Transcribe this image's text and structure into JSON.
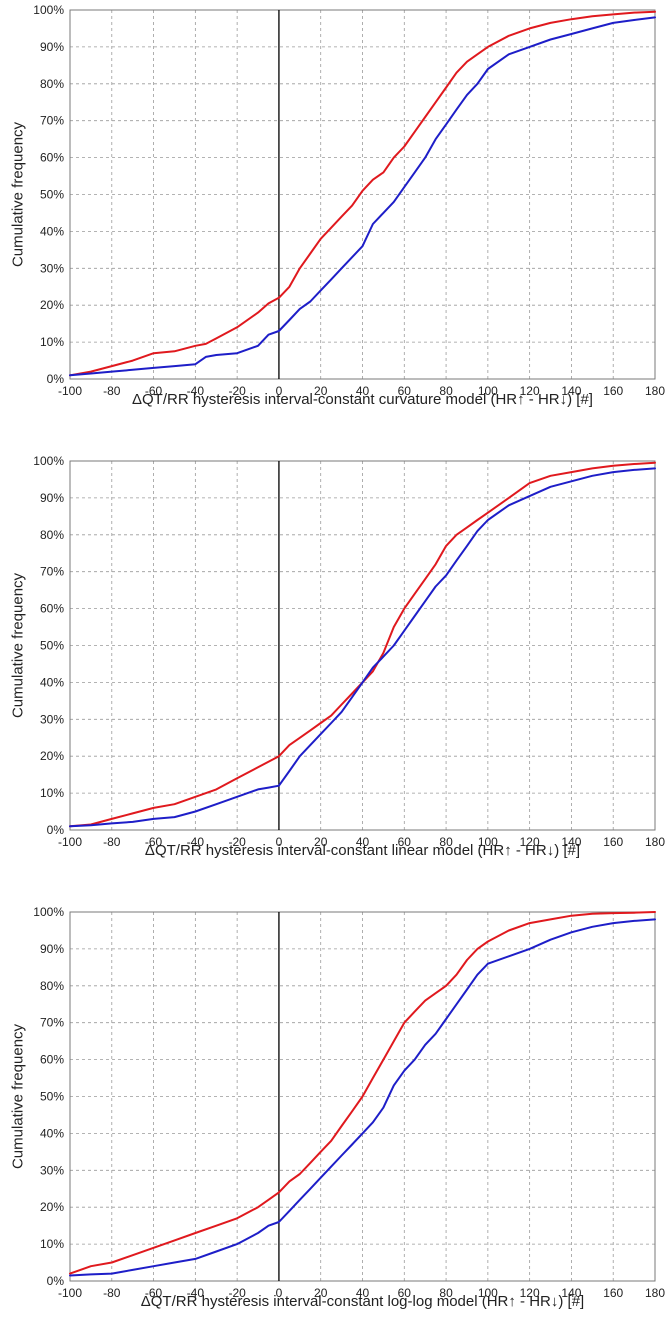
{
  "chart_data": [
    {
      "type": "line",
      "xlabel": "ΔQT/RR hysteresis interval-constant curvature model (HR↑ - HR↓) [#]",
      "ylabel": "Cumulative frequency",
      "xlim": [
        -100,
        180
      ],
      "ylim": [
        0,
        100
      ],
      "x_ticks": [
        -100,
        -80,
        -60,
        -40,
        -20,
        0,
        20,
        40,
        60,
        80,
        100,
        120,
        140,
        160,
        180
      ],
      "y_ticks": [
        0,
        10,
        20,
        30,
        40,
        50,
        60,
        70,
        80,
        90,
        100
      ],
      "y_tick_format": "%",
      "grid": true,
      "reference_line_x": 0,
      "series": [
        {
          "color": "#e0191e",
          "x": [
            -100,
            -90,
            -80,
            -70,
            -60,
            -50,
            -40,
            -35,
            -30,
            -20,
            -10,
            -5,
            0,
            5,
            10,
            15,
            20,
            25,
            30,
            35,
            40,
            45,
            50,
            55,
            60,
            65,
            70,
            75,
            80,
            85,
            90,
            95,
            100,
            110,
            120,
            130,
            140,
            150,
            160,
            170,
            180
          ],
          "y": [
            1,
            2,
            3.5,
            5,
            7,
            7.5,
            9,
            9.5,
            11,
            14,
            18,
            20.5,
            22,
            25,
            30,
            34,
            38,
            41,
            44,
            47,
            51,
            54,
            56,
            60,
            63,
            67,
            71,
            75,
            79,
            83,
            86,
            88,
            90,
            93,
            95,
            96.5,
            97.5,
            98.3,
            98.8,
            99.3,
            99.5
          ]
        },
        {
          "color": "#1e1ec8",
          "x": [
            -100,
            -90,
            -80,
            -70,
            -60,
            -50,
            -40,
            -35,
            -30,
            -20,
            -10,
            -5,
            0,
            5,
            10,
            15,
            20,
            25,
            30,
            35,
            40,
            45,
            50,
            55,
            60,
            65,
            70,
            75,
            80,
            85,
            90,
            95,
            100,
            110,
            120,
            130,
            140,
            150,
            160,
            170,
            180
          ],
          "y": [
            1,
            1.5,
            2,
            2.5,
            3,
            3.5,
            4,
            6,
            6.5,
            7,
            9,
            12,
            13,
            16,
            19,
            21,
            24,
            27,
            30,
            33,
            36,
            42,
            45,
            48,
            52,
            56,
            60,
            65,
            69,
            73,
            77,
            80,
            84,
            88,
            90,
            92,
            93.5,
            95,
            96.5,
            97.3,
            98
          ]
        }
      ]
    },
    {
      "type": "line",
      "xlabel": "ΔQT/RR hysteresis interval-constant linear model (HR↑ - HR↓) [#]",
      "ylabel": "Cumulative frequency",
      "xlim": [
        -100,
        180
      ],
      "ylim": [
        0,
        100
      ],
      "x_ticks": [
        -100,
        -80,
        -60,
        -40,
        -20,
        0,
        20,
        40,
        60,
        80,
        100,
        120,
        140,
        160,
        180
      ],
      "y_ticks": [
        0,
        10,
        20,
        30,
        40,
        50,
        60,
        70,
        80,
        90,
        100
      ],
      "y_tick_format": "%",
      "grid": true,
      "reference_line_x": 0,
      "series": [
        {
          "color": "#e0191e",
          "x": [
            -100,
            -90,
            -80,
            -70,
            -60,
            -50,
            -40,
            -30,
            -20,
            -10,
            0,
            5,
            10,
            15,
            20,
            25,
            30,
            35,
            40,
            45,
            50,
            55,
            60,
            65,
            70,
            75,
            80,
            85,
            90,
            95,
            100,
            110,
            120,
            130,
            140,
            150,
            160,
            170,
            180
          ],
          "y": [
            1,
            1.5,
            3,
            4.5,
            6,
            7,
            9,
            11,
            14,
            17,
            20,
            23,
            25,
            27,
            29,
            31,
            34,
            37,
            40,
            43,
            48,
            55,
            60,
            64,
            68,
            72,
            77,
            80,
            82,
            84,
            86,
            90,
            94,
            96,
            97,
            98,
            98.7,
            99.2,
            99.5
          ]
        },
        {
          "color": "#1e1ec8",
          "x": [
            -100,
            -90,
            -80,
            -70,
            -60,
            -50,
            -40,
            -30,
            -20,
            -10,
            -5,
            0,
            5,
            10,
            15,
            20,
            25,
            30,
            35,
            40,
            45,
            50,
            55,
            60,
            65,
            70,
            75,
            80,
            85,
            90,
            95,
            100,
            110,
            120,
            130,
            140,
            150,
            160,
            170,
            180
          ],
          "y": [
            1,
            1.3,
            1.8,
            2.2,
            3,
            3.5,
            5,
            7,
            9,
            11,
            11.5,
            12,
            16,
            20,
            23,
            26,
            29,
            32,
            36,
            40,
            44,
            47,
            50,
            54,
            58,
            62,
            66,
            69,
            73,
            77,
            81,
            84,
            88,
            90.5,
            93,
            94.5,
            96,
            97,
            97.6,
            98
          ]
        }
      ]
    },
    {
      "type": "line",
      "xlabel": "ΔQT/RR hysteresis interval-constant log-log model (HR↑ - HR↓) [#]",
      "ylabel": "Cumulative frequency",
      "xlim": [
        -100,
        180
      ],
      "ylim": [
        0,
        100
      ],
      "x_ticks": [
        -100,
        -80,
        -60,
        -40,
        -20,
        0,
        20,
        40,
        60,
        80,
        100,
        120,
        140,
        160,
        180
      ],
      "y_ticks": [
        0,
        10,
        20,
        30,
        40,
        50,
        60,
        70,
        80,
        90,
        100
      ],
      "y_tick_format": "%",
      "grid": true,
      "reference_line_x": 0,
      "series": [
        {
          "color": "#e0191e",
          "x": [
            -100,
            -90,
            -80,
            -70,
            -60,
            -50,
            -40,
            -30,
            -20,
            -10,
            -5,
            0,
            5,
            10,
            15,
            20,
            25,
            30,
            35,
            40,
            45,
            50,
            55,
            60,
            65,
            70,
            75,
            80,
            85,
            90,
            95,
            100,
            110,
            120,
            130,
            140,
            150,
            160,
            170,
            180
          ],
          "y": [
            2,
            4,
            5,
            7,
            9,
            11,
            13,
            15,
            17,
            20,
            22,
            24,
            27,
            29,
            32,
            35,
            38,
            42,
            46,
            50,
            55,
            60,
            65,
            70,
            73,
            76,
            78,
            80,
            83,
            87,
            90,
            92,
            95,
            97,
            98,
            99,
            99.5,
            99.7,
            99.8,
            100
          ]
        },
        {
          "color": "#1e1ec8",
          "x": [
            -100,
            -90,
            -80,
            -70,
            -60,
            -50,
            -40,
            -30,
            -20,
            -10,
            -5,
            0,
            5,
            10,
            15,
            20,
            25,
            30,
            35,
            40,
            45,
            50,
            55,
            60,
            65,
            70,
            75,
            80,
            85,
            90,
            95,
            100,
            110,
            120,
            130,
            140,
            150,
            160,
            170,
            180
          ],
          "y": [
            1.5,
            1.8,
            2,
            3,
            4,
            5,
            6,
            8,
            10,
            13,
            15,
            16,
            19,
            22,
            25,
            28,
            31,
            34,
            37,
            40,
            43,
            47,
            53,
            57,
            60,
            64,
            67,
            71,
            75,
            79,
            83,
            86,
            88,
            90,
            92.5,
            94.5,
            96,
            97,
            97.6,
            98
          ]
        }
      ]
    }
  ]
}
